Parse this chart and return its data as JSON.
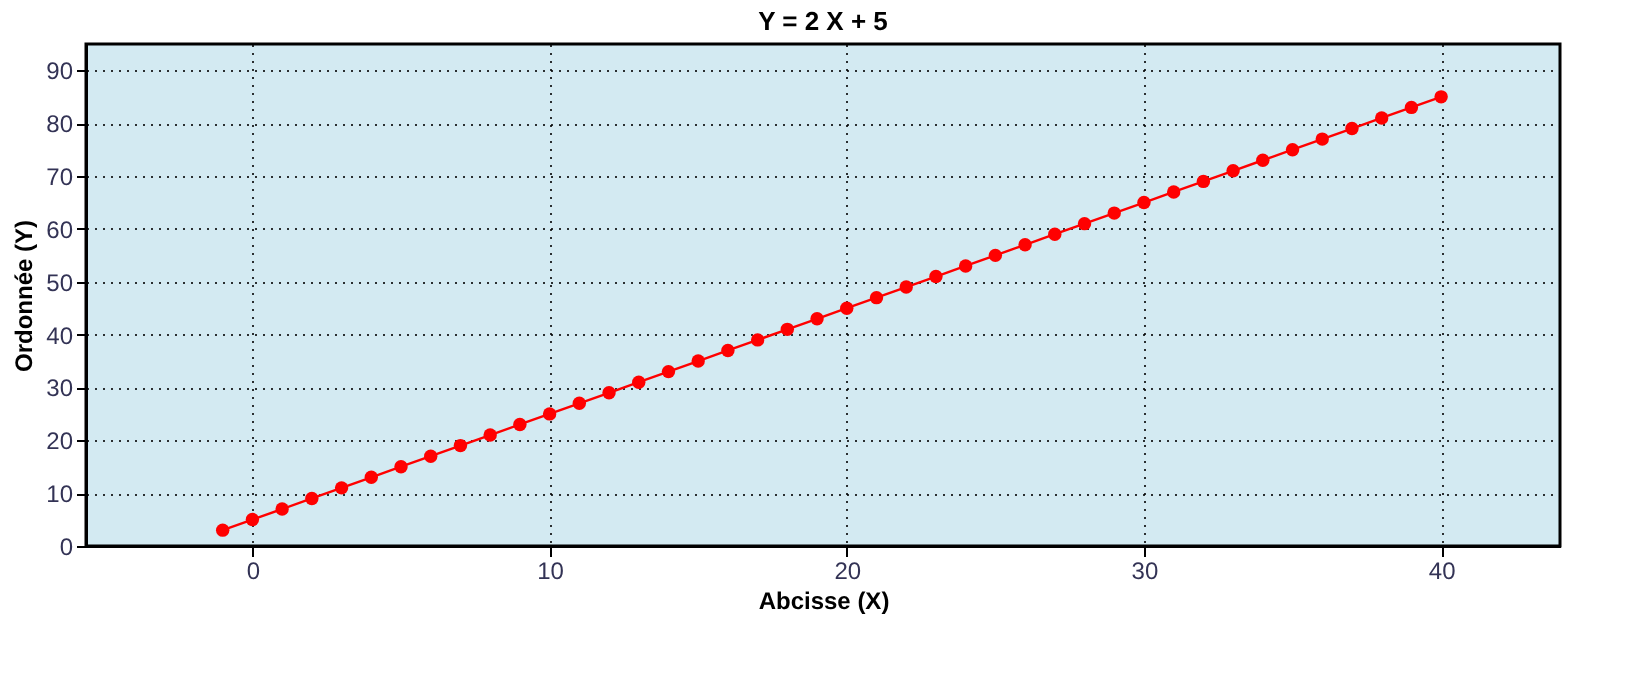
{
  "chart_data": {
    "type": "line",
    "title": "Y = 2 X + 5",
    "xlabel": "Abcisse (X)",
    "ylabel": "Ordonnée (Y)",
    "x": [
      -1,
      0,
      1,
      2,
      3,
      4,
      5,
      6,
      7,
      8,
      9,
      10,
      11,
      12,
      13,
      14,
      15,
      16,
      17,
      18,
      19,
      20,
      21,
      22,
      23,
      24,
      25,
      26,
      27,
      28,
      29,
      30,
      31,
      32,
      33,
      34,
      35,
      36,
      37,
      38,
      39,
      40
    ],
    "series": [
      {
        "color": "#ff0000",
        "values": [
          3,
          5,
          7,
          9,
          11,
          13,
          15,
          17,
          19,
          21,
          23,
          25,
          27,
          29,
          31,
          33,
          35,
          37,
          39,
          41,
          43,
          45,
          47,
          49,
          51,
          53,
          55,
          57,
          59,
          61,
          63,
          65,
          67,
          69,
          71,
          73,
          75,
          77,
          79,
          81,
          83,
          85
        ]
      }
    ],
    "xlim": [
      -5.6,
      44
    ],
    "xticks": [
      0,
      10,
      20,
      30,
      40
    ],
    "ylim": [
      0,
      95
    ],
    "yticks": [
      0,
      10,
      20,
      30,
      40,
      50,
      60,
      70,
      80,
      90
    ],
    "grid": true,
    "marker": "circle",
    "line_style": "solid"
  }
}
